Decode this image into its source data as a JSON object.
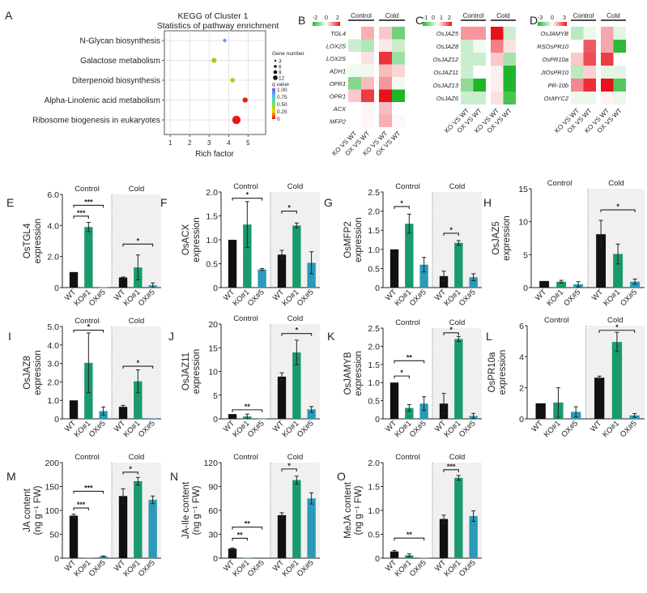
{
  "figure": {
    "panel_letters": [
      "A",
      "B",
      "C",
      "D",
      "E",
      "F",
      "G",
      "H",
      "I",
      "J",
      "K",
      "L",
      "M",
      "N",
      "O"
    ],
    "group_labels": {
      "control": "Control",
      "cold": "Cold"
    },
    "genotypes": [
      "WT",
      "KO#1",
      "OX#5"
    ],
    "comparison_labels": [
      "KO VS WT",
      "OX VS WT",
      "KO VS WT",
      "OX VS WT"
    ],
    "colors": {
      "wt": "#111111",
      "ko": "#1a9a6a",
      "ox": "#2a9ab8",
      "cold_bg": "#f0f0f0",
      "heat_low": "#1fb52a",
      "heat_mid": "#ffffff",
      "heat_high": "#e8121c"
    }
  },
  "chart_data": [
    {
      "panel": "A",
      "type": "scatter",
      "title": "KEGG of Cluster 1",
      "subtitle": "Statistics of pathway enrichment",
      "xlabel": "Rich factor",
      "xticks": [
        1,
        2,
        3,
        4,
        5
      ],
      "xlim": [
        0.7,
        5.9
      ],
      "categories": [
        "N-Glycan biosynthesis",
        "Galactose metabolism",
        "Diterpenoid biosynthesis",
        "Alpha-Linolenic acid metabolism",
        "Ribosome biogenesis in eukaryotes"
      ],
      "points": [
        {
          "pathway": "N-Glycan biosynthesis",
          "rich_factor": 3.8,
          "gene_number": 3,
          "q_value": 0.85
        },
        {
          "pathway": "Galactose metabolism",
          "rich_factor": 3.25,
          "gene_number": 6,
          "q_value": 0.4
        },
        {
          "pathway": "Diterpenoid biosynthesis",
          "rich_factor": 4.2,
          "gene_number": 5,
          "q_value": 0.4
        },
        {
          "pathway": "Alpha-Linolenic acid metabolism",
          "rich_factor": 4.85,
          "gene_number": 6,
          "q_value": 0.02
        },
        {
          "pathway": "Ribosome biogenesis in eukaryotes",
          "rich_factor": 4.4,
          "gene_number": 12,
          "q_value": 0.01
        }
      ],
      "legend_size_title": "Gene number",
      "legend_sizes": [
        3,
        6,
        9,
        12
      ],
      "legend_color_title": "q value",
      "legend_color_ticks": [
        "1.00",
        "0.75",
        "0.50",
        "0.25",
        "0"
      ]
    },
    {
      "panel": "B",
      "type": "heatmap",
      "scale_ticks": [
        "-2",
        "0",
        "2"
      ],
      "scale_range": [
        -2,
        2
      ],
      "rows": [
        "TGL4",
        "LOX2S",
        "LOX2S",
        "ADH1",
        "OPR1",
        "OPR1",
        "ACX",
        "MFP2"
      ],
      "columns": [
        "KO VS WT",
        "OX VS WT",
        "KO VS WT",
        "OX VS WT"
      ],
      "values": [
        [
          0.0,
          0.6,
          0.4,
          -1.2
        ],
        [
          -0.4,
          -0.6,
          0.15,
          -0.4
        ],
        [
          0.0,
          0.2,
          1.7,
          -0.8
        ],
        [
          -0.1,
          -0.1,
          0.5,
          0.3
        ],
        [
          -1.0,
          0.5,
          0.8,
          -0.1
        ],
        [
          0.4,
          1.6,
          2.0,
          -2.0
        ],
        [
          0.0,
          0.05,
          0.5,
          0.0
        ],
        [
          0.0,
          0.05,
          0.6,
          0.05
        ]
      ]
    },
    {
      "panel": "C",
      "type": "heatmap",
      "scale_ticks": [
        "-1",
        "0",
        "1",
        "2"
      ],
      "scale_range": [
        -1,
        2
      ],
      "rows": [
        "OsJAZ5",
        "OsJAZ8",
        "OsJAZ12",
        "OsJAZ11",
        "OsJAZ13",
        "OsJAZ6"
      ],
      "columns": [
        "KO VS WT",
        "OX VS WT",
        "KO VS WT",
        "OX VS WT"
      ],
      "values": [
        [
          0.8,
          0.8,
          2.0,
          -0.2
        ],
        [
          -0.2,
          -0.05,
          1.0,
          0.2
        ],
        [
          -0.2,
          -0.2,
          0.4,
          -0.35
        ],
        [
          -0.2,
          0.0,
          0.1,
          -1.0
        ],
        [
          -0.45,
          -1.0,
          0.1,
          -1.0
        ],
        [
          -0.2,
          -0.2,
          0.2,
          -0.8
        ]
      ]
    },
    {
      "panel": "D",
      "type": "heatmap",
      "scale_ticks": [
        "-3",
        "0",
        "3"
      ],
      "scale_range": [
        -3,
        3
      ],
      "rows": [
        "OsJAMYB",
        "RSOsPR10",
        "OsPR10a",
        "JIOsPR10",
        "PR-10b",
        "OsMYC2"
      ],
      "columns": [
        "KO VS WT",
        "OX VS WT",
        "KO VS WT",
        "OX VS WT"
      ],
      "values": [
        [
          -0.8,
          -0.2,
          1.0,
          -0.3
        ],
        [
          0.0,
          2.0,
          1.0,
          -2.8
        ],
        [
          0.6,
          2.2,
          2.4,
          0.0
        ],
        [
          -0.8,
          0.5,
          -0.3,
          -0.3
        ],
        [
          1.4,
          2.6,
          3.0,
          -2.2
        ],
        [
          -0.2,
          -0.2,
          0.1,
          -0.2
        ]
      ]
    },
    {
      "panel": "E",
      "type": "bar",
      "ylabel_gene": "OsTGL4",
      "ylabel_suffix": "expression",
      "ylim": [
        0,
        6
      ],
      "yticks": [
        "0",
        "2.0",
        "4.0",
        "6.0"
      ],
      "ytick_values": [
        0,
        2,
        4,
        6
      ],
      "series": [
        {
          "group": "Control",
          "values": [
            1.0,
            3.9,
            0.02
          ],
          "errors": [
            0,
            0.3,
            0
          ]
        },
        {
          "group": "Cold",
          "values": [
            0.65,
            1.3,
            0.15
          ],
          "errors": [
            0.03,
            0.8,
            0.15
          ]
        }
      ],
      "significance": [
        {
          "group": "Control",
          "from": 0,
          "to": 1,
          "label": "***",
          "y": 4.6
        },
        {
          "group": "Control",
          "from": 0,
          "to": 2,
          "label": "***",
          "y": 5.3
        },
        {
          "group": "Cold",
          "from": 0,
          "to": 2,
          "label": "*",
          "y": 2.8
        }
      ]
    },
    {
      "panel": "F",
      "type": "bar",
      "ylabel_gene": "OsACX",
      "ylabel_suffix": "expression",
      "ylim": [
        0,
        2
      ],
      "yticks": [
        "0",
        "0.5",
        "1.0",
        "1.5",
        "2.0"
      ],
      "ytick_values": [
        0,
        0.5,
        1,
        1.5,
        2
      ],
      "series": [
        {
          "group": "Control",
          "values": [
            1.0,
            1.32,
            0.38
          ],
          "errors": [
            0,
            0.48,
            0.02
          ]
        },
        {
          "group": "Cold",
          "values": [
            0.69,
            1.3,
            0.52
          ],
          "errors": [
            0.09,
            0.05,
            0.23
          ]
        }
      ],
      "significance": [
        {
          "group": "Control",
          "from": 0,
          "to": 2,
          "label": "*",
          "y": 1.87
        },
        {
          "group": "Cold",
          "from": 0,
          "to": 1,
          "label": "*",
          "y": 1.6
        }
      ]
    },
    {
      "panel": "G",
      "type": "bar",
      "ylabel_gene": "OsMFP2",
      "ylabel_suffix": "expression",
      "ylim": [
        0,
        2.5
      ],
      "yticks": [
        "0",
        "0.5",
        "1.0",
        "1.5",
        "2.0",
        "2.5"
      ],
      "ytick_values": [
        0,
        0.5,
        1,
        1.5,
        2,
        2.5
      ],
      "series": [
        {
          "group": "Control",
          "values": [
            1.0,
            1.67,
            0.6
          ],
          "errors": [
            0,
            0.25,
            0.19
          ]
        },
        {
          "group": "Cold",
          "values": [
            0.3,
            1.17,
            0.27
          ],
          "errors": [
            0.13,
            0.06,
            0.09
          ]
        }
      ],
      "significance": [
        {
          "group": "Control",
          "from": 0,
          "to": 1,
          "label": "*",
          "y": 2.12
        },
        {
          "group": "Cold",
          "from": 0,
          "to": 1,
          "label": "*",
          "y": 1.42
        }
      ]
    },
    {
      "panel": "H",
      "type": "bar",
      "ylabel_gene": "OsJAZ5",
      "ylabel_suffix": "expression",
      "ylim": [
        0,
        15
      ],
      "yticks": [
        "0",
        "5",
        "10",
        "15"
      ],
      "ytick_values": [
        0,
        5,
        10,
        15
      ],
      "series": [
        {
          "group": "Control",
          "values": [
            1.0,
            0.9,
            0.5
          ],
          "errors": [
            0,
            0.2,
            0.4
          ]
        },
        {
          "group": "Cold",
          "values": [
            8.1,
            5.1,
            0.9
          ],
          "errors": [
            2.1,
            1.5,
            0.4
          ]
        }
      ],
      "significance": [
        {
          "group": "Cold",
          "from": 0,
          "to": 2,
          "label": "*",
          "y": 11.8
        }
      ]
    },
    {
      "panel": "I",
      "type": "bar",
      "ylabel_gene": "OsJAZ8",
      "ylabel_suffix": "expression",
      "ylim": [
        0,
        5
      ],
      "yticks": [
        "0",
        "1.0",
        "2.0",
        "3.0",
        "4.0",
        "5.0"
      ],
      "ytick_values": [
        0,
        1,
        2,
        3,
        4,
        5
      ],
      "series": [
        {
          "group": "Control",
          "values": [
            1.0,
            3.03,
            0.42
          ],
          "errors": [
            0,
            1.62,
            0.22
          ]
        },
        {
          "group": "Cold",
          "values": [
            0.65,
            2.03,
            0.03
          ],
          "errors": [
            0.08,
            0.62,
            0
          ]
        }
      ],
      "significance": [
        {
          "group": "Control",
          "from": 0,
          "to": 2,
          "label": "*",
          "y": 4.8
        },
        {
          "group": "Cold",
          "from": 0,
          "to": 2,
          "label": "*",
          "y": 2.85
        }
      ]
    },
    {
      "panel": "J",
      "type": "bar",
      "ylabel_gene": "OsJAZ11",
      "ylabel_suffix": "expression",
      "ylim": [
        0,
        20
      ],
      "yticks": [
        "0",
        "5",
        "10",
        "15",
        "20"
      ],
      "ytick_values": [
        0,
        5,
        10,
        15,
        20
      ],
      "series": [
        {
          "group": "Control",
          "values": [
            1.0,
            0.5,
            0.05
          ],
          "errors": [
            0,
            0.5,
            0
          ]
        },
        {
          "group": "Cold",
          "values": [
            8.9,
            14.0,
            2.0
          ],
          "errors": [
            0.8,
            2.6,
            0.6
          ]
        }
      ],
      "significance": [
        {
          "group": "Control",
          "from": 0,
          "to": 2,
          "label": "**",
          "y": 1.9
        },
        {
          "group": "Cold",
          "from": 0,
          "to": 2,
          "label": "*",
          "y": 18.0
        }
      ]
    },
    {
      "panel": "K",
      "type": "bar",
      "ylabel_gene": "OsJAMYB",
      "ylabel_suffix": "expression",
      "ylim": [
        0,
        2.5
      ],
      "yticks": [
        "0",
        "0.5",
        "1.0",
        "1.5",
        "2.0",
        "2.5"
      ],
      "ytick_values": [
        0,
        0.5,
        1,
        1.5,
        2,
        2.5
      ],
      "series": [
        {
          "group": "Control",
          "values": [
            1.0,
            0.3,
            0.42
          ],
          "errors": [
            0,
            0.09,
            0.19
          ]
        },
        {
          "group": "Cold",
          "values": [
            0.42,
            2.2,
            0.08
          ],
          "errors": [
            0.28,
            0.07,
            0.07
          ]
        }
      ],
      "significance": [
        {
          "group": "Control",
          "from": 0,
          "to": 1,
          "label": "*",
          "y": 1.18
        },
        {
          "group": "Control",
          "from": 0,
          "to": 2,
          "label": "**",
          "y": 1.6
        },
        {
          "group": "Cold",
          "from": 0,
          "to": 1,
          "label": "*",
          "y": 2.37
        }
      ]
    },
    {
      "panel": "L",
      "type": "bar",
      "ylabel_gene": "OsPR10a",
      "ylabel_suffix": "expression",
      "ylim": [
        0,
        6
      ],
      "yticks": [
        "0",
        "2",
        "4",
        "6"
      ],
      "ytick_values": [
        0,
        2,
        4,
        6
      ],
      "series": [
        {
          "group": "Control",
          "values": [
            1.0,
            1.05,
            0.45
          ],
          "errors": [
            0,
            0.95,
            0.33
          ]
        },
        {
          "group": "Cold",
          "values": [
            2.65,
            4.95,
            0.22
          ],
          "errors": [
            0.1,
            0.62,
            0.12
          ]
        }
      ],
      "significance": [
        {
          "group": "Cold",
          "from": 0,
          "to": 2,
          "label": "*",
          "y": 5.7
        }
      ]
    },
    {
      "panel": "M",
      "type": "bar",
      "ylabel_line1": "JA content",
      "ylabel_line2": "(ng g⁻¹ FW)",
      "ylim": [
        0,
        200
      ],
      "yticks": [
        "0",
        "50",
        "100",
        "150",
        "200"
      ],
      "ytick_values": [
        0,
        50,
        100,
        150,
        200
      ],
      "series": [
        {
          "group": "Control",
          "values": [
            89,
            1,
            4
          ],
          "errors": [
            3,
            0,
            0.5
          ]
        },
        {
          "group": "Cold",
          "values": [
            130,
            161,
            122
          ],
          "errors": [
            15,
            8,
            8
          ]
        }
      ],
      "significance": [
        {
          "group": "Control",
          "from": 0,
          "to": 1,
          "label": "***",
          "y": 105
        },
        {
          "group": "Control",
          "from": 0,
          "to": 2,
          "label": "***",
          "y": 140
        },
        {
          "group": "Cold",
          "from": 0,
          "to": 1,
          "label": "*",
          "y": 180
        }
      ]
    },
    {
      "panel": "N",
      "type": "bar",
      "ylabel_line1": "JA-Ile content",
      "ylabel_line2": "(ng g⁻¹ FW)",
      "ylim": [
        0,
        120
      ],
      "yticks": [
        "0",
        "30",
        "60",
        "90",
        "120"
      ],
      "ytick_values": [
        0,
        30,
        60,
        90,
        120
      ],
      "series": [
        {
          "group": "Control",
          "values": [
            12,
            0.3,
            0.8
          ],
          "errors": [
            0.8,
            0,
            0
          ]
        },
        {
          "group": "Cold",
          "values": [
            54,
            98,
            75
          ],
          "errors": [
            3,
            5,
            7
          ]
        }
      ],
      "significance": [
        {
          "group": "Control",
          "from": 0,
          "to": 1,
          "label": "**",
          "y": 25
        },
        {
          "group": "Control",
          "from": 0,
          "to": 2,
          "label": "**",
          "y": 39
        },
        {
          "group": "Cold",
          "from": 0,
          "to": 1,
          "label": "*",
          "y": 112
        }
      ]
    },
    {
      "panel": "O",
      "type": "bar",
      "ylabel_line1": "MeJA content",
      "ylabel_line2": "(ng g⁻¹ FW)",
      "ylim": [
        0,
        2
      ],
      "yticks": [
        "0",
        "0.5",
        "1.0",
        "1.5",
        "2.0"
      ],
      "ytick_values": [
        0,
        0.5,
        1,
        1.5,
        2
      ],
      "series": [
        {
          "group": "Control",
          "values": [
            0.14,
            0.06,
            0.01
          ],
          "errors": [
            0.02,
            0.03,
            0
          ]
        },
        {
          "group": "Cold",
          "values": [
            0.82,
            1.68,
            0.88
          ],
          "errors": [
            0.08,
            0.05,
            0.11
          ]
        }
      ],
      "significance": [
        {
          "group": "Control",
          "from": 0,
          "to": 2,
          "label": "**",
          "y": 0.42
        },
        {
          "group": "Cold",
          "from": 0,
          "to": 1,
          "label": "***",
          "y": 1.85
        }
      ]
    }
  ]
}
